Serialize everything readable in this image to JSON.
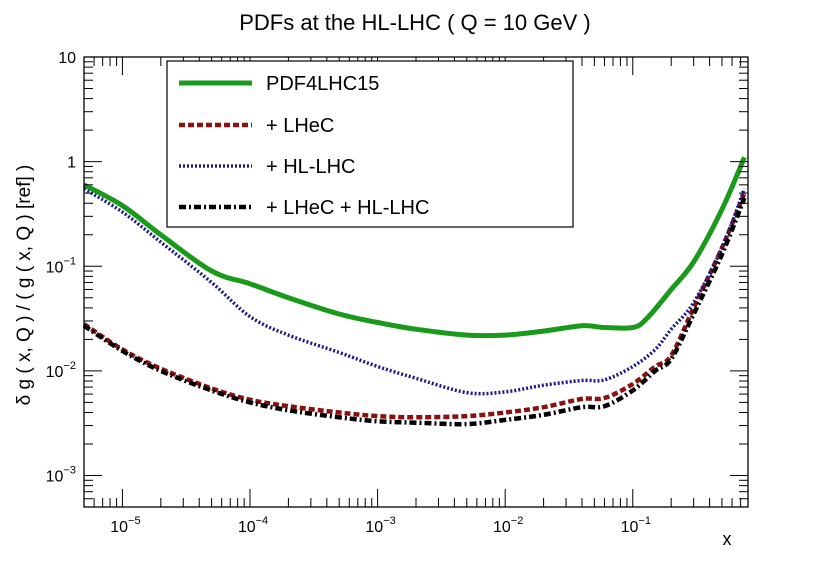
{
  "chart_data": {
    "type": "line",
    "title": "PDFs at the HL-LHC ( Q = 10 GeV )",
    "xlabel": "x",
    "ylabel": "δ g ( x, Q ) / ( g ( x, Q ) [ref] )",
    "xscale": "log",
    "yscale": "log",
    "xlim": [
      5e-06,
      0.8
    ],
    "ylim": [
      0.0005,
      10
    ],
    "legend_position": "top-left",
    "xticks": [
      {
        "value": 1e-05,
        "base": "10",
        "exp": "−5"
      },
      {
        "value": 0.0001,
        "base": "10",
        "exp": "−4"
      },
      {
        "value": 0.001,
        "base": "10",
        "exp": "−3"
      },
      {
        "value": 0.01,
        "base": "10",
        "exp": "−2"
      },
      {
        "value": 0.1,
        "base": "10",
        "exp": "−1"
      }
    ],
    "yticks": [
      {
        "value": 10,
        "base": "10",
        "exp": ""
      },
      {
        "value": 1,
        "base": "1",
        "exp": ""
      },
      {
        "value": 0.1,
        "base": "10",
        "exp": "−1"
      },
      {
        "value": 0.01,
        "base": "10",
        "exp": "−2"
      },
      {
        "value": 0.001,
        "base": "10",
        "exp": "−3"
      }
    ],
    "series": [
      {
        "name": "PDF4LHC15",
        "color": "#1a9a1a",
        "style": "solid",
        "points": [
          [
            5e-06,
            0.6
          ],
          [
            1e-05,
            0.38
          ],
          [
            2e-05,
            0.2
          ],
          [
            5e-05,
            0.09
          ],
          [
            0.0001,
            0.068
          ],
          [
            0.0002,
            0.05
          ],
          [
            0.0005,
            0.035
          ],
          [
            0.001,
            0.029
          ],
          [
            0.002,
            0.025
          ],
          [
            0.005,
            0.022
          ],
          [
            0.01,
            0.022
          ],
          [
            0.02,
            0.024
          ],
          [
            0.04,
            0.027
          ],
          [
            0.06,
            0.026
          ],
          [
            0.1,
            0.026
          ],
          [
            0.13,
            0.032
          ],
          [
            0.2,
            0.06
          ],
          [
            0.3,
            0.11
          ],
          [
            0.5,
            0.35
          ],
          [
            0.75,
            1.1
          ]
        ]
      },
      {
        "name": "+ LHeC",
        "color": "#8b1010",
        "style": "dash",
        "points": [
          [
            5e-06,
            0.028
          ],
          [
            1e-05,
            0.016
          ],
          [
            2e-05,
            0.0105
          ],
          [
            5e-05,
            0.0068
          ],
          [
            0.0001,
            0.0053
          ],
          [
            0.0002,
            0.0046
          ],
          [
            0.0005,
            0.004
          ],
          [
            0.001,
            0.0037
          ],
          [
            0.002,
            0.0036
          ],
          [
            0.005,
            0.0037
          ],
          [
            0.01,
            0.004
          ],
          [
            0.02,
            0.0045
          ],
          [
            0.04,
            0.0054
          ],
          [
            0.06,
            0.0055
          ],
          [
            0.1,
            0.0075
          ],
          [
            0.15,
            0.011
          ],
          [
            0.2,
            0.014
          ],
          [
            0.3,
            0.04
          ],
          [
            0.5,
            0.15
          ],
          [
            0.75,
            0.5
          ]
        ]
      },
      {
        "name": "+ HL-LHC",
        "color": "#1a1a8b",
        "style": "dot",
        "points": [
          [
            5e-06,
            0.55
          ],
          [
            1e-05,
            0.33
          ],
          [
            2e-05,
            0.17
          ],
          [
            5e-05,
            0.07
          ],
          [
            0.0001,
            0.033
          ],
          [
            0.0002,
            0.022
          ],
          [
            0.0005,
            0.015
          ],
          [
            0.001,
            0.011
          ],
          [
            0.002,
            0.0085
          ],
          [
            0.005,
            0.0062
          ],
          [
            0.01,
            0.0063
          ],
          [
            0.02,
            0.0073
          ],
          [
            0.04,
            0.0081
          ],
          [
            0.06,
            0.0082
          ],
          [
            0.1,
            0.011
          ],
          [
            0.15,
            0.016
          ],
          [
            0.2,
            0.025
          ],
          [
            0.3,
            0.045
          ],
          [
            0.5,
            0.15
          ],
          [
            0.75,
            0.55
          ]
        ]
      },
      {
        "name": "+ LHeC + HL-LHC",
        "color": "#000000",
        "style": "dashdot",
        "points": [
          [
            5e-06,
            0.027
          ],
          [
            1e-05,
            0.0155
          ],
          [
            2e-05,
            0.01
          ],
          [
            5e-05,
            0.0065
          ],
          [
            0.0001,
            0.005
          ],
          [
            0.0002,
            0.0042
          ],
          [
            0.0005,
            0.0036
          ],
          [
            0.001,
            0.0033
          ],
          [
            0.002,
            0.0032
          ],
          [
            0.005,
            0.0031
          ],
          [
            0.01,
            0.0034
          ],
          [
            0.02,
            0.0038
          ],
          [
            0.04,
            0.0045
          ],
          [
            0.06,
            0.0046
          ],
          [
            0.1,
            0.0065
          ],
          [
            0.15,
            0.01
          ],
          [
            0.2,
            0.013
          ],
          [
            0.3,
            0.035
          ],
          [
            0.5,
            0.13
          ],
          [
            0.75,
            0.45
          ]
        ]
      }
    ]
  }
}
